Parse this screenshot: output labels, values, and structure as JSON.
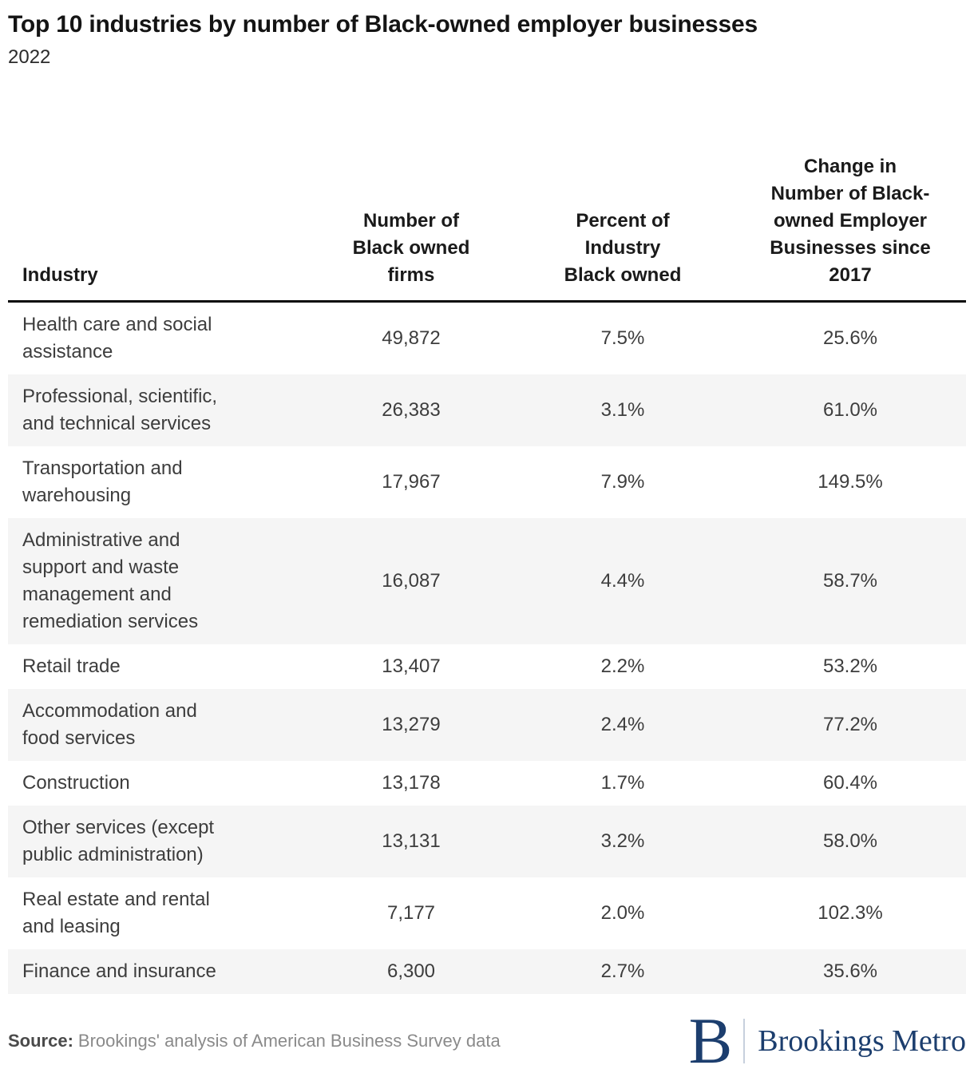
{
  "title": "Top 10 industries by number of Black-owned employer businesses",
  "subtitle": "2022",
  "chart_data": {
    "type": "table",
    "title": "Top 10 industries by number of Black-owned employer businesses",
    "subtitle": "2022",
    "columns": [
      "Industry",
      "Number of Black owned firms",
      "Percent of Industry Black owned",
      "Change in Number of Black-owned Employer Businesses since 2017"
    ],
    "rows": [
      {
        "industry": "Health care and social assistance",
        "firms": 49872,
        "percent_black_owned": "7.5%",
        "change_since_2017": "25.6%"
      },
      {
        "industry": "Professional, scientific, and technical services",
        "firms": 26383,
        "percent_black_owned": "3.1%",
        "change_since_2017": "61.0%"
      },
      {
        "industry": "Transportation and warehousing",
        "firms": 17967,
        "percent_black_owned": "7.9%",
        "change_since_2017": "149.5%"
      },
      {
        "industry": "Administrative and support and waste management and remediation services",
        "firms": 16087,
        "percent_black_owned": "4.4%",
        "change_since_2017": "58.7%"
      },
      {
        "industry": "Retail trade",
        "firms": 13407,
        "percent_black_owned": "2.2%",
        "change_since_2017": "53.2%"
      },
      {
        "industry": "Accommodation and food services",
        "firms": 13279,
        "percent_black_owned": "2.4%",
        "change_since_2017": "77.2%"
      },
      {
        "industry": "Construction",
        "firms": 13178,
        "percent_black_owned": "1.7%",
        "change_since_2017": "60.4%"
      },
      {
        "industry": "Other services (except public administration)",
        "firms": 13131,
        "percent_black_owned": "3.2%",
        "change_since_2017": "58.0%"
      },
      {
        "industry": "Real estate and rental and leasing",
        "firms": 7177,
        "percent_black_owned": "2.0%",
        "change_since_2017": "102.3%"
      },
      {
        "industry": "Finance and insurance",
        "firms": 6300,
        "percent_black_owned": "2.7%",
        "change_since_2017": "35.6%"
      }
    ]
  },
  "table": {
    "headers": {
      "industry": "Industry",
      "firms": "Number of\nBlack owned\nfirms",
      "percent": "Percent of\nIndustry\nBlack owned",
      "change": "Change in\nNumber of Black-\nowned Employer\nBusinesses since\n2017"
    },
    "rows": [
      {
        "industry": "Health care and social\nassistance",
        "firms": "49,872",
        "percent": "7.5%",
        "change": "25.6%"
      },
      {
        "industry": "Professional, scientific,\nand technical services",
        "firms": "26,383",
        "percent": "3.1%",
        "change": "61.0%"
      },
      {
        "industry": "Transportation and\nwarehousing",
        "firms": "17,967",
        "percent": "7.9%",
        "change": "149.5%"
      },
      {
        "industry": "Administrative and\nsupport and waste\nmanagement and\nremediation services",
        "firms": "16,087",
        "percent": "4.4%",
        "change": "58.7%"
      },
      {
        "industry": "Retail trade",
        "firms": "13,407",
        "percent": "2.2%",
        "change": "53.2%"
      },
      {
        "industry": "Accommodation and\nfood services",
        "firms": "13,279",
        "percent": "2.4%",
        "change": "77.2%"
      },
      {
        "industry": "Construction",
        "firms": "13,178",
        "percent": "1.7%",
        "change": "60.4%"
      },
      {
        "industry": "Other services (except\npublic administration)",
        "firms": "13,131",
        "percent": "3.2%",
        "change": "58.0%"
      },
      {
        "industry": "Real estate and rental\nand leasing",
        "firms": "7,177",
        "percent": "2.0%",
        "change": "102.3%"
      },
      {
        "industry": "Finance and insurance",
        "firms": "6,300",
        "percent": "2.7%",
        "change": "35.6%"
      }
    ]
  },
  "footer": {
    "source_label": "Source:",
    "source_text": "Brookings' analysis of American Business Survey data",
    "logo_mark": "B",
    "logo_text": "Brookings Metro"
  },
  "colors": {
    "brand_navy": "#1c3e6e",
    "row_stripe": "#f5f5f5",
    "header_rule": "#0a0a0a"
  }
}
